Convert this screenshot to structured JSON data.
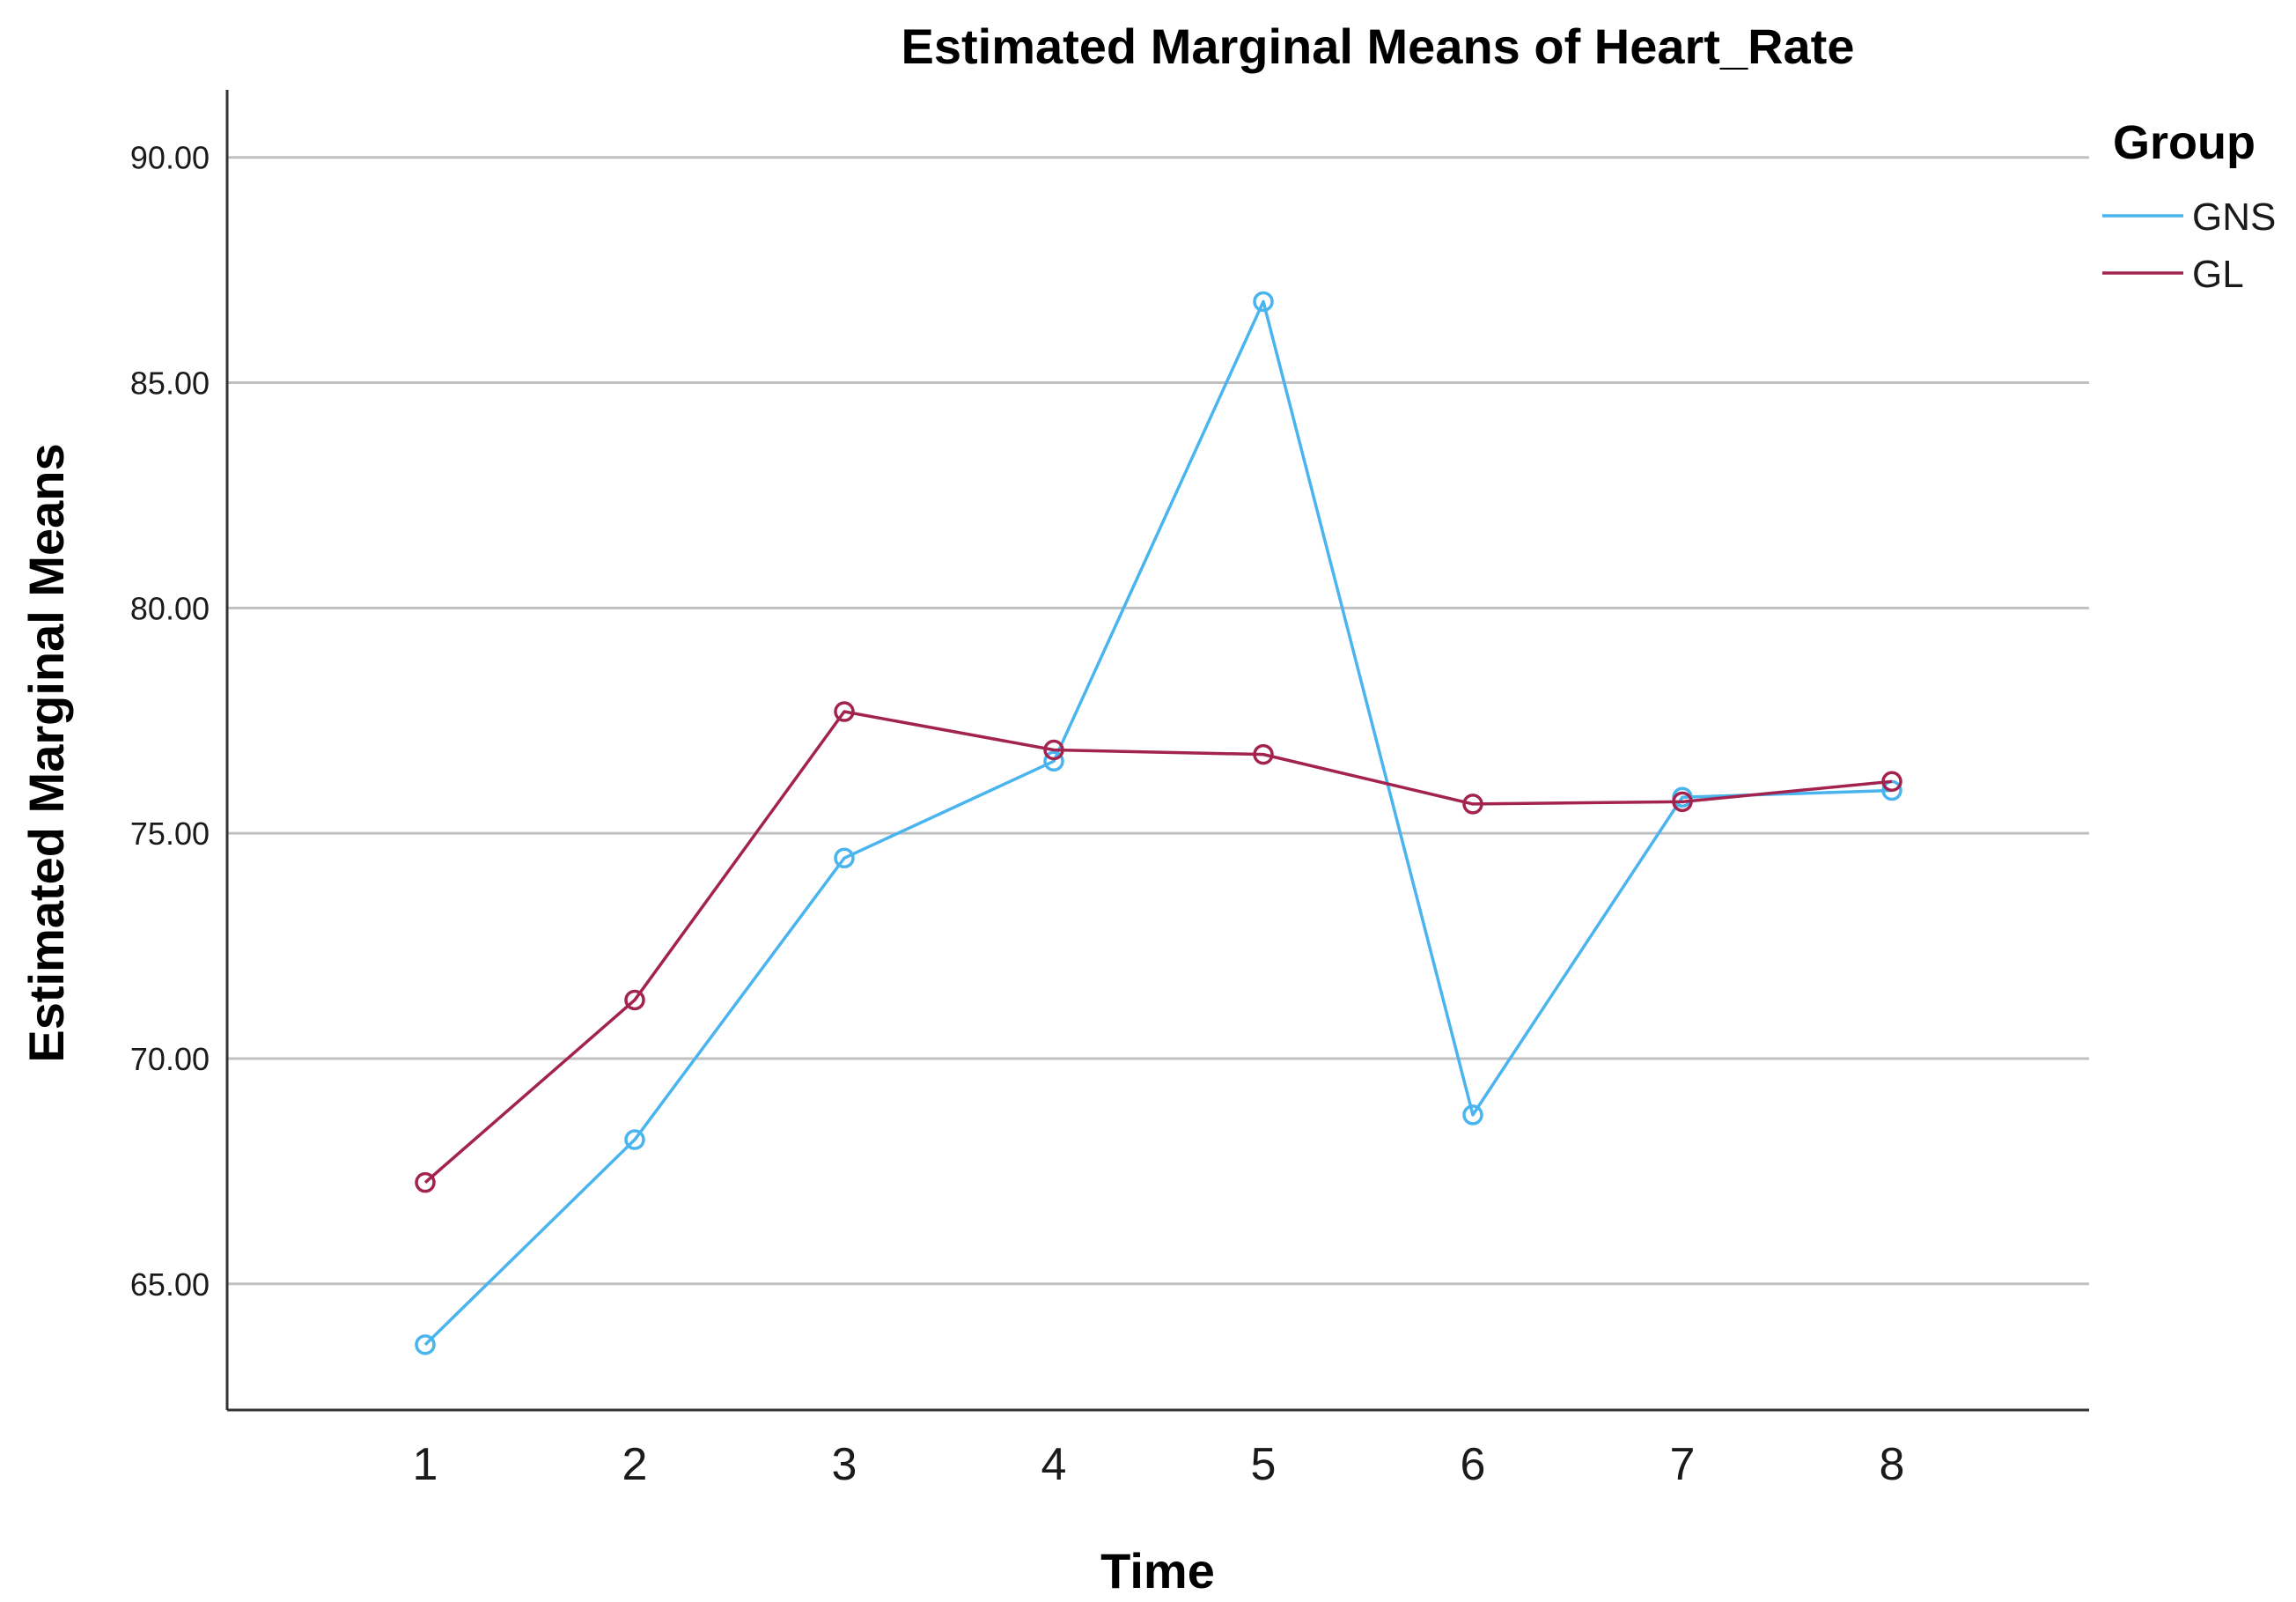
{
  "chart_data": {
    "type": "line",
    "title": "Estimated Marginal Means of Heart_Rate",
    "xlabel": "Time",
    "ylabel": "Estimated Marginal Means",
    "categories": [
      "1",
      "2",
      "3",
      "4",
      "5",
      "6",
      "7",
      "8"
    ],
    "yticks": [
      "65.00",
      "70.00",
      "75.00",
      "80.00",
      "85.00",
      "90.00"
    ],
    "ytick_values": [
      65,
      70,
      75,
      80,
      85,
      90
    ],
    "ylim": [
      62.2,
      91.5
    ],
    "grid": true,
    "legend": {
      "title": "Group",
      "position": "top-right"
    },
    "series": [
      {
        "name": "GNS",
        "color": "#4ab4ef",
        "values": [
          63.65,
          68.2,
          74.45,
          76.6,
          86.8,
          68.75,
          75.8,
          75.95
        ]
      },
      {
        "name": "GL",
        "color": "#a3234f",
        "values": [
          67.25,
          71.3,
          77.7,
          76.85,
          76.75,
          75.65,
          75.7,
          76.15
        ]
      }
    ]
  }
}
